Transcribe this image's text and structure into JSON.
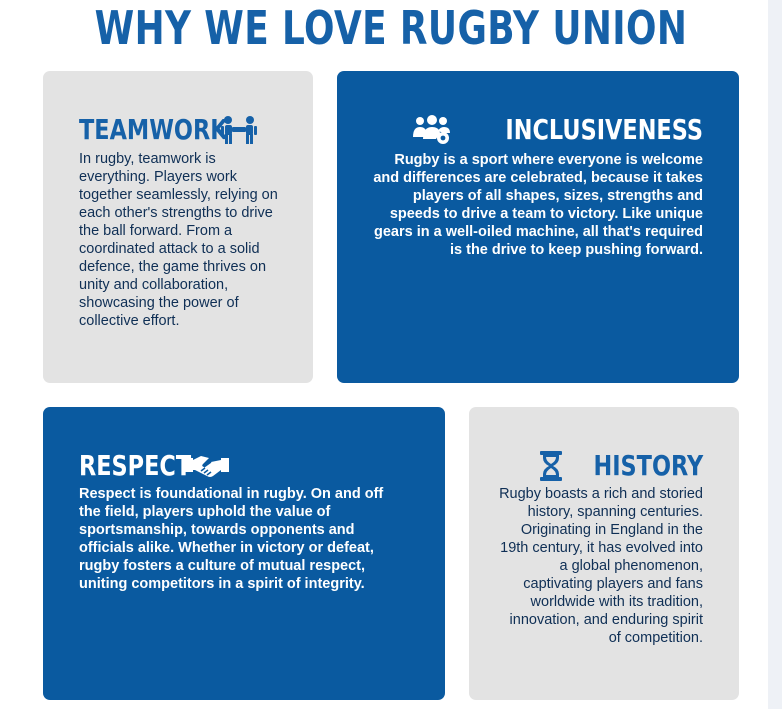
{
  "page": {
    "title": "WHY WE LOVE RUGBY UNION"
  },
  "cards": {
    "teamwork": {
      "title": "TEAMWORK",
      "icon": "team-people-icon",
      "body": "In rugby, teamwork is everything. Players work together seamlessly, relying on each other's strengths to drive the ball forward. From a coordinated attack to a solid defence, the game thrives on unity and collaboration, showcasing the power of collective effort."
    },
    "inclusiveness": {
      "title": "INCLUSIVENESS",
      "icon": "users-gear-icon",
      "body": "Rugby is a sport where everyone is welcome and differences are celebrated, because it takes players of all shapes, sizes, strengths and speeds to drive a team to victory. Like unique gears in a well-oiled machine, all that's required is the drive to keep pushing forward."
    },
    "respect": {
      "title": "RESPECT",
      "icon": "handshake-icon",
      "body": "Respect is foundational in rugby. On and off the field, players uphold the value of sportsmanship, towards opponents and officials alike. Whether in victory or defeat, rugby fosters a culture of mutual respect, uniting competitors in a spirit of integrity."
    },
    "history": {
      "title": "HISTORY",
      "icon": "hourglass-icon",
      "body": "Rugby boasts a rich and storied history, spanning centuries. Originating in England in the 19th century, it has evolved into a global phenomenon, captivating players and fans worldwide with its tradition, innovation, and enduring spirit of competition."
    }
  },
  "colors": {
    "primary_blue": "#0a5aa0",
    "title_blue": "#1661a8",
    "light_card": "#e3e3e3",
    "dark_text": "#0f2f55"
  }
}
